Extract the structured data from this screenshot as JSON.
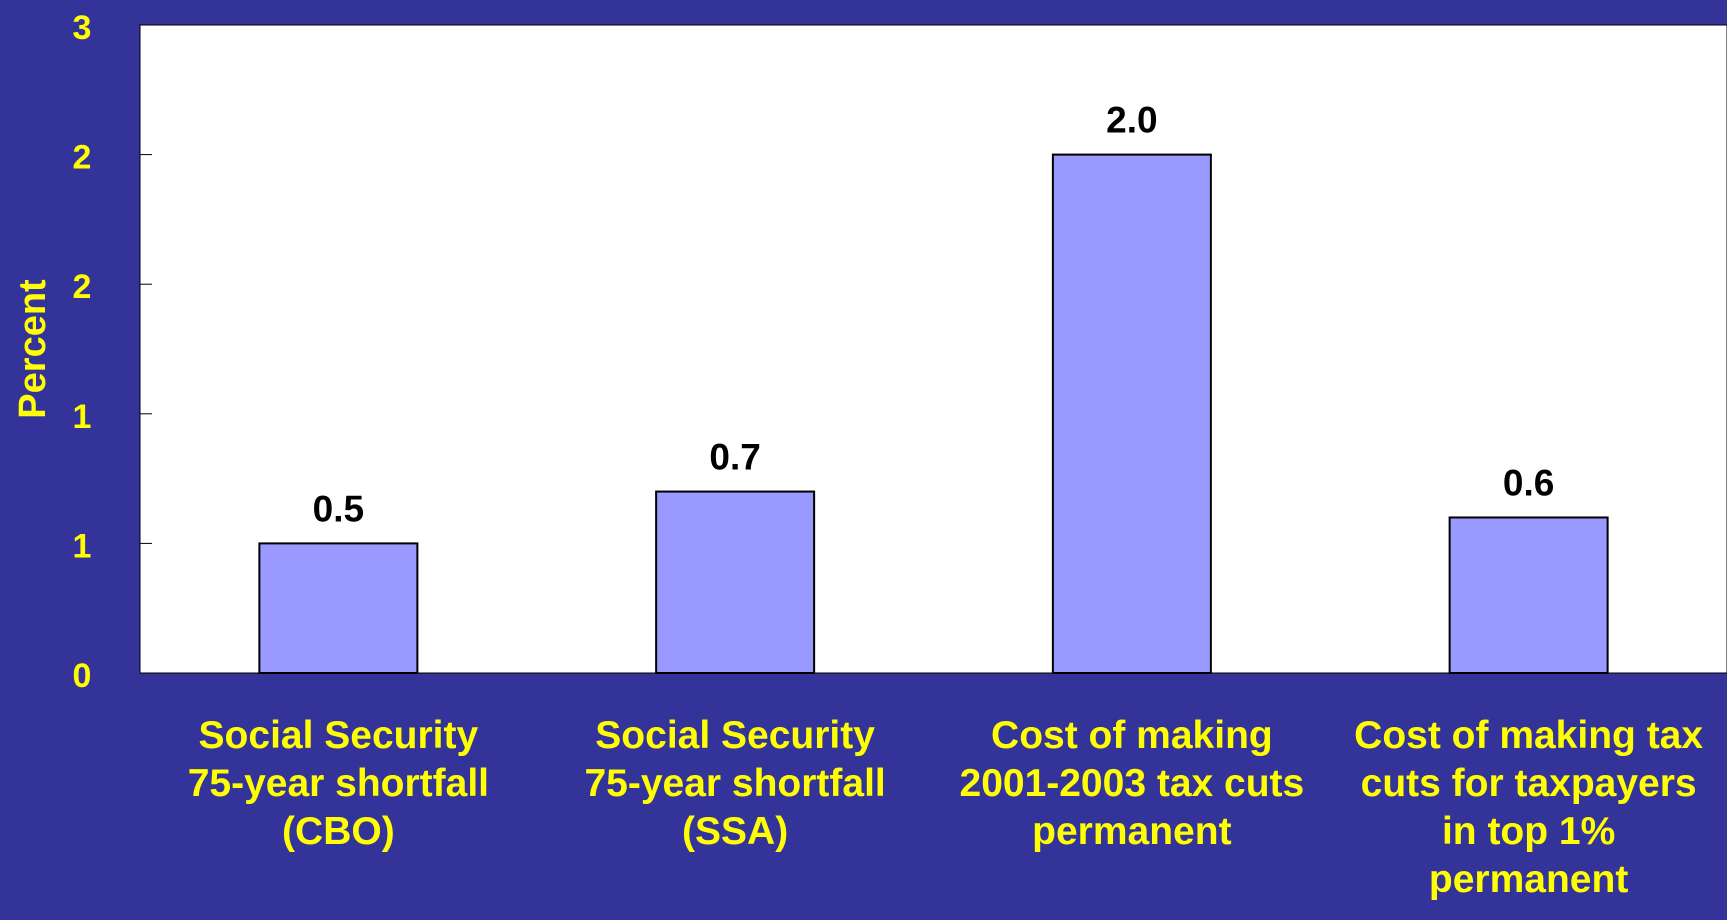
{
  "colors": {
    "background": "#333399",
    "plot_area": "#FFFFFF",
    "bar_fill": "#9999FF",
    "bar_stroke": "#000000",
    "axis_text": "#FFFF00",
    "data_label": "#000000"
  },
  "chart_data": {
    "type": "bar",
    "categories": [
      "Social Security\n75-year shortfall\n(CBO)",
      "Social Security\n75-year shortfall\n(SSA)",
      "Cost of making\n2001-2003 tax cuts\npermanent",
      "Cost of making tax\ncuts for taxpayers\nin top 1%\npermanent"
    ],
    "values": [
      0.5,
      0.7,
      2.0,
      0.6
    ],
    "data_labels": [
      "0.5",
      "0.7",
      "2.0",
      "0.6"
    ],
    "title": "",
    "xlabel": "",
    "ylabel": "Percent",
    "ylim": [
      0,
      2.5
    ],
    "yticks": [
      0,
      0.5,
      1.0,
      1.5,
      2.0,
      2.5
    ],
    "ytick_labels": [
      "0",
      "1",
      "1",
      "2",
      "2",
      "3"
    ],
    "grid": false,
    "legend": "none"
  }
}
